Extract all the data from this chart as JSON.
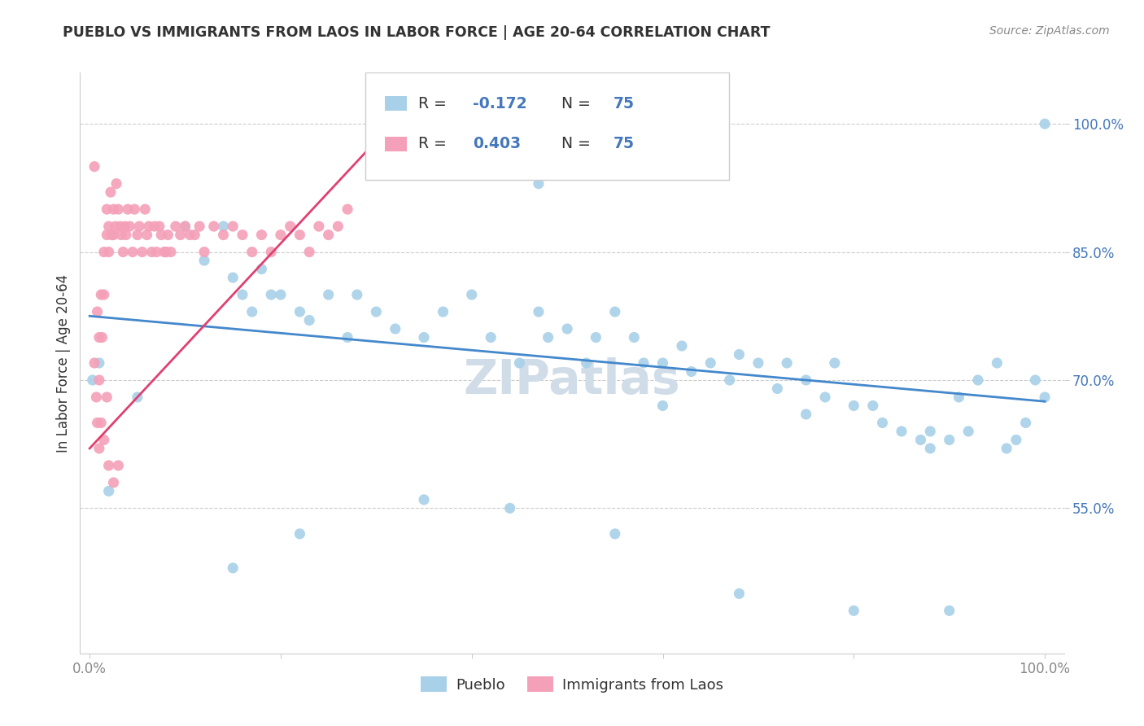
{
  "title": "PUEBLO VS IMMIGRANTS FROM LAOS IN LABOR FORCE | AGE 20-64 CORRELATION CHART",
  "source": "Source: ZipAtlas.com",
  "ylabel": "In Labor Force | Age 20-64",
  "xlim": [
    -0.01,
    1.02
  ],
  "ylim": [
    0.38,
    1.06
  ],
  "x_ticks": [
    0.0,
    0.2,
    0.4,
    0.6,
    0.8,
    1.0
  ],
  "x_tick_labels": [
    "0.0%",
    "",
    "",
    "",
    "",
    "100.0%"
  ],
  "y_ticks": [
    0.55,
    0.7,
    0.85,
    1.0
  ],
  "y_tick_labels": [
    "55.0%",
    "70.0%",
    "85.0%",
    "100.0%"
  ],
  "pueblo_R": -0.172,
  "pueblo_N": 75,
  "laos_R": 0.403,
  "laos_N": 75,
  "pueblo_color": "#a8d0e8",
  "laos_color": "#f4a0b8",
  "pueblo_line_color": "#4488cc",
  "laos_line_color": "#e04070",
  "watermark_color": "#d0dde8",
  "legend_R_N_color": "#4477bb",
  "legend_text_color": "#333333",
  "grid_color": "#cccccc",
  "title_color": "#333333",
  "source_color": "#888888",
  "ylabel_color": "#333333",
  "tick_label_color": "#888888",
  "right_tick_color": "#4477bb",
  "pueblo_x": [
    0.003,
    0.01,
    0.02,
    0.05,
    0.08,
    0.1,
    0.12,
    0.14,
    0.15,
    0.16,
    0.17,
    0.18,
    0.19,
    0.2,
    0.22,
    0.23,
    0.25,
    0.27,
    0.28,
    0.3,
    0.32,
    0.35,
    0.37,
    0.4,
    0.42,
    0.45,
    0.47,
    0.48,
    0.5,
    0.52,
    0.53,
    0.55,
    0.57,
    0.58,
    0.6,
    0.62,
    0.63,
    0.65,
    0.67,
    0.68,
    0.7,
    0.72,
    0.73,
    0.75,
    0.77,
    0.78,
    0.8,
    0.82,
    0.83,
    0.85,
    0.87,
    0.88,
    0.9,
    0.91,
    0.92,
    0.93,
    0.95,
    0.96,
    0.97,
    0.98,
    0.99,
    1.0,
    1.0,
    0.35,
    0.15,
    0.22,
    0.44,
    0.55,
    0.68,
    0.8,
    0.9,
    0.47,
    0.6,
    0.75,
    0.88
  ],
  "pueblo_y": [
    0.7,
    0.72,
    0.57,
    0.68,
    0.85,
    0.88,
    0.84,
    0.88,
    0.82,
    0.8,
    0.78,
    0.83,
    0.8,
    0.8,
    0.78,
    0.77,
    0.8,
    0.75,
    0.8,
    0.78,
    0.76,
    0.75,
    0.78,
    0.8,
    0.75,
    0.72,
    0.78,
    0.75,
    0.76,
    0.72,
    0.75,
    0.78,
    0.75,
    0.72,
    0.72,
    0.74,
    0.71,
    0.72,
    0.7,
    0.73,
    0.72,
    0.69,
    0.72,
    0.7,
    0.68,
    0.72,
    0.67,
    0.67,
    0.65,
    0.64,
    0.63,
    0.62,
    0.63,
    0.68,
    0.64,
    0.7,
    0.72,
    0.62,
    0.63,
    0.65,
    0.7,
    0.68,
    1.0,
    0.56,
    0.48,
    0.52,
    0.55,
    0.52,
    0.45,
    0.43,
    0.43,
    0.93,
    0.67,
    0.66,
    0.64
  ],
  "laos_x": [
    0.005,
    0.007,
    0.008,
    0.01,
    0.01,
    0.012,
    0.013,
    0.015,
    0.015,
    0.018,
    0.018,
    0.02,
    0.02,
    0.022,
    0.023,
    0.025,
    0.025,
    0.027,
    0.028,
    0.03,
    0.032,
    0.033,
    0.035,
    0.037,
    0.038,
    0.04,
    0.042,
    0.045,
    0.047,
    0.05,
    0.052,
    0.055,
    0.058,
    0.06,
    0.062,
    0.065,
    0.068,
    0.07,
    0.073,
    0.075,
    0.078,
    0.08,
    0.082,
    0.085,
    0.09,
    0.095,
    0.1,
    0.105,
    0.11,
    0.115,
    0.12,
    0.13,
    0.14,
    0.15,
    0.16,
    0.17,
    0.18,
    0.19,
    0.2,
    0.21,
    0.22,
    0.23,
    0.24,
    0.25,
    0.26,
    0.27,
    0.01,
    0.012,
    0.015,
    0.018,
    0.02,
    0.025,
    0.03,
    0.005,
    0.008
  ],
  "laos_y": [
    0.72,
    0.68,
    0.65,
    0.75,
    0.7,
    0.8,
    0.75,
    0.85,
    0.8,
    0.9,
    0.87,
    0.88,
    0.85,
    0.92,
    0.87,
    0.9,
    0.87,
    0.88,
    0.93,
    0.9,
    0.88,
    0.87,
    0.85,
    0.88,
    0.87,
    0.9,
    0.88,
    0.85,
    0.9,
    0.87,
    0.88,
    0.85,
    0.9,
    0.87,
    0.88,
    0.85,
    0.88,
    0.85,
    0.88,
    0.87,
    0.85,
    0.85,
    0.87,
    0.85,
    0.88,
    0.87,
    0.88,
    0.87,
    0.87,
    0.88,
    0.85,
    0.88,
    0.87,
    0.88,
    0.87,
    0.85,
    0.87,
    0.85,
    0.87,
    0.88,
    0.87,
    0.85,
    0.88,
    0.87,
    0.88,
    0.9,
    0.62,
    0.65,
    0.63,
    0.68,
    0.6,
    0.58,
    0.6,
    0.95,
    0.78
  ]
}
